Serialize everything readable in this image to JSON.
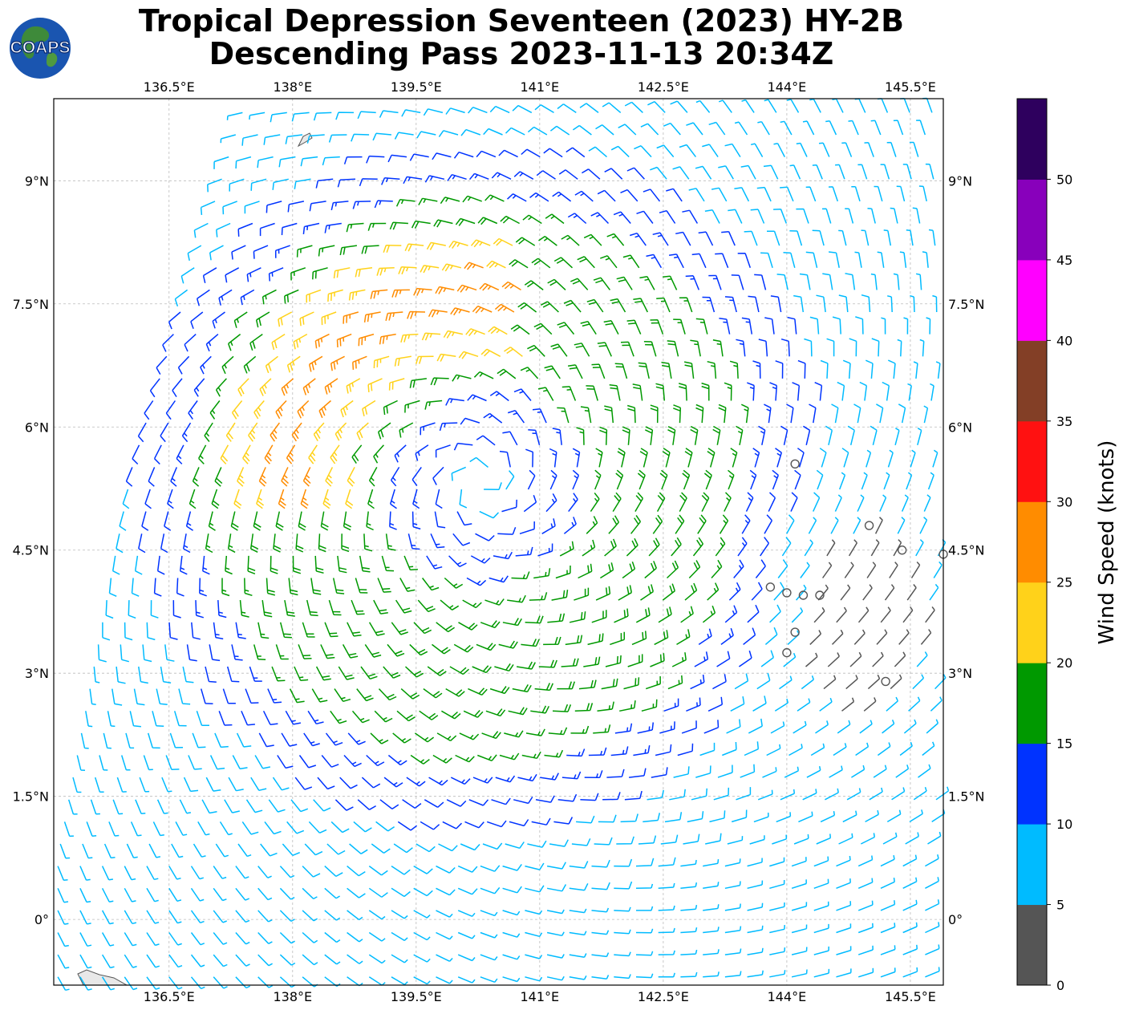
{
  "title": {
    "line1": "Tropical Depression Seventeen (2023) HY-2B",
    "line2": "Descending Pass 2023-11-13 20:34Z"
  },
  "logo": {
    "text": "COAPS",
    "icon": "globe-icon"
  },
  "map": {
    "lon_ticks": [
      "136.5°E",
      "138°E",
      "139.5°E",
      "141°E",
      "142.5°E",
      "144°E",
      "145.5°E"
    ],
    "lat_ticks": [
      "9°N",
      "7.5°N",
      "6°N",
      "4.5°N",
      "3°N",
      "1.5°N",
      "0°"
    ],
    "lon_values": [
      136.5,
      138,
      139.5,
      141,
      142.5,
      144,
      145.5
    ],
    "lat_values": [
      9,
      7.5,
      6,
      4.5,
      3,
      1.5,
      0
    ],
    "lon_range": [
      135.1,
      145.9
    ],
    "lat_range": [
      -0.8,
      10.0
    ],
    "storm_center": {
      "lon": 140.3,
      "lat": 5.3
    },
    "colors": {
      "land": "#e8e8e8",
      "coast": "#555555",
      "grid": "#bbbbbb"
    }
  },
  "colorbar": {
    "label": "Wind Speed (knots)",
    "ticks": [
      "0",
      "5",
      "10",
      "15",
      "20",
      "25",
      "30",
      "35",
      "40",
      "45",
      "50"
    ],
    "colors": [
      "#555555",
      "#00bbff",
      "#0033ff",
      "#009900",
      "#ffd21a",
      "#ff8c00",
      "#ff1111",
      "#833f26",
      "#ff00ff",
      "#8800bb",
      "#2e005e"
    ]
  }
}
